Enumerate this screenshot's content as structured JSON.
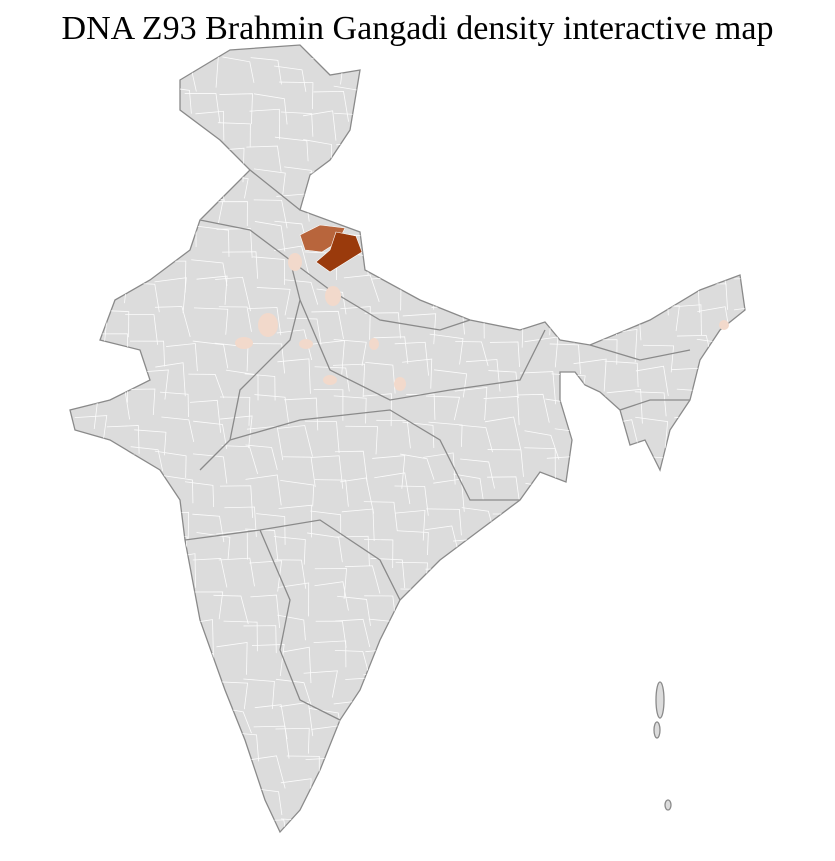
{
  "title": "DNA Z93 Brahmin Gangadi density interactive map",
  "map": {
    "region": "India districts",
    "colors": {
      "base": "#dcdcdc",
      "district_border": "#ffffff",
      "state_border": "#8a8a8a",
      "highest": "#9a3a0c",
      "high": "#b8653c",
      "low": "#f2d9cb"
    },
    "highlighted_areas": [
      {
        "area": "Uttarakhand east",
        "level": "highest"
      },
      {
        "area": "Uttarakhand west",
        "level": "high"
      },
      {
        "area": "scattered districts (Punjab, Haryana, Rajasthan, Uttar Pradesh, Assam)",
        "level": "low"
      }
    ]
  }
}
